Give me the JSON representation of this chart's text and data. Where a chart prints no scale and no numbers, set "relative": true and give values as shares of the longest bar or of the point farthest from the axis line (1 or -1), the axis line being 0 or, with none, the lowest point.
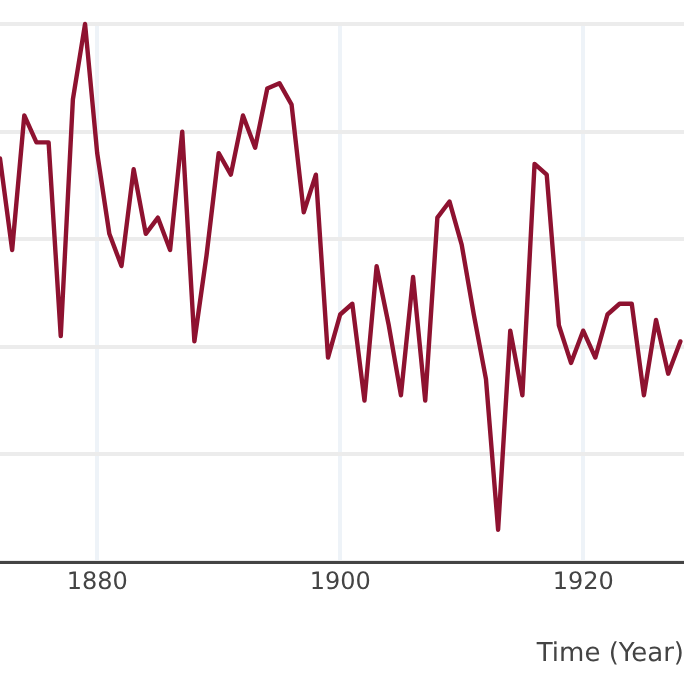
{
  "chart_data": {
    "type": "line",
    "xlabel": "Time (Year)",
    "relative": true,
    "grid": true,
    "marker": "none",
    "line_style": "solid",
    "x": [
      1872,
      1873,
      1874,
      1875,
      1876,
      1877,
      1878,
      1879,
      1880,
      1881,
      1882,
      1883,
      1884,
      1885,
      1886,
      1887,
      1888,
      1889,
      1890,
      1891,
      1892,
      1893,
      1894,
      1895,
      1896,
      1897,
      1898,
      1899,
      1900,
      1901,
      1902,
      1903,
      1904,
      1905,
      1906,
      1907,
      1908,
      1909,
      1910,
      1911,
      1912,
      1913,
      1914,
      1915,
      1916,
      1917,
      1918,
      1919,
      1920,
      1921,
      1922,
      1923,
      1924,
      1925,
      1926,
      1927,
      1928
    ],
    "series": [
      {
        "color": "#8e1230",
        "values": [
          0.75,
          0.58,
          0.83,
          0.78,
          0.78,
          0.42,
          0.86,
          1.0,
          0.76,
          0.61,
          0.55,
          0.73,
          0.61,
          0.64,
          0.58,
          0.8,
          0.41,
          0.57,
          0.76,
          0.72,
          0.83,
          0.77,
          0.88,
          0.89,
          0.85,
          0.65,
          0.72,
          0.38,
          0.46,
          0.48,
          0.3,
          0.55,
          0.44,
          0.31,
          0.53,
          0.3,
          0.64,
          0.67,
          0.59,
          0.46,
          0.34,
          0.06,
          0.43,
          0.31,
          0.74,
          0.72,
          0.44,
          0.37,
          0.43,
          0.38,
          0.46,
          0.48,
          0.48,
          0.31,
          0.45,
          0.35,
          0.41
        ]
      }
    ],
    "xlim": [
      1872,
      1928.3
    ],
    "xticks": [
      1880,
      1900,
      1920
    ]
  }
}
